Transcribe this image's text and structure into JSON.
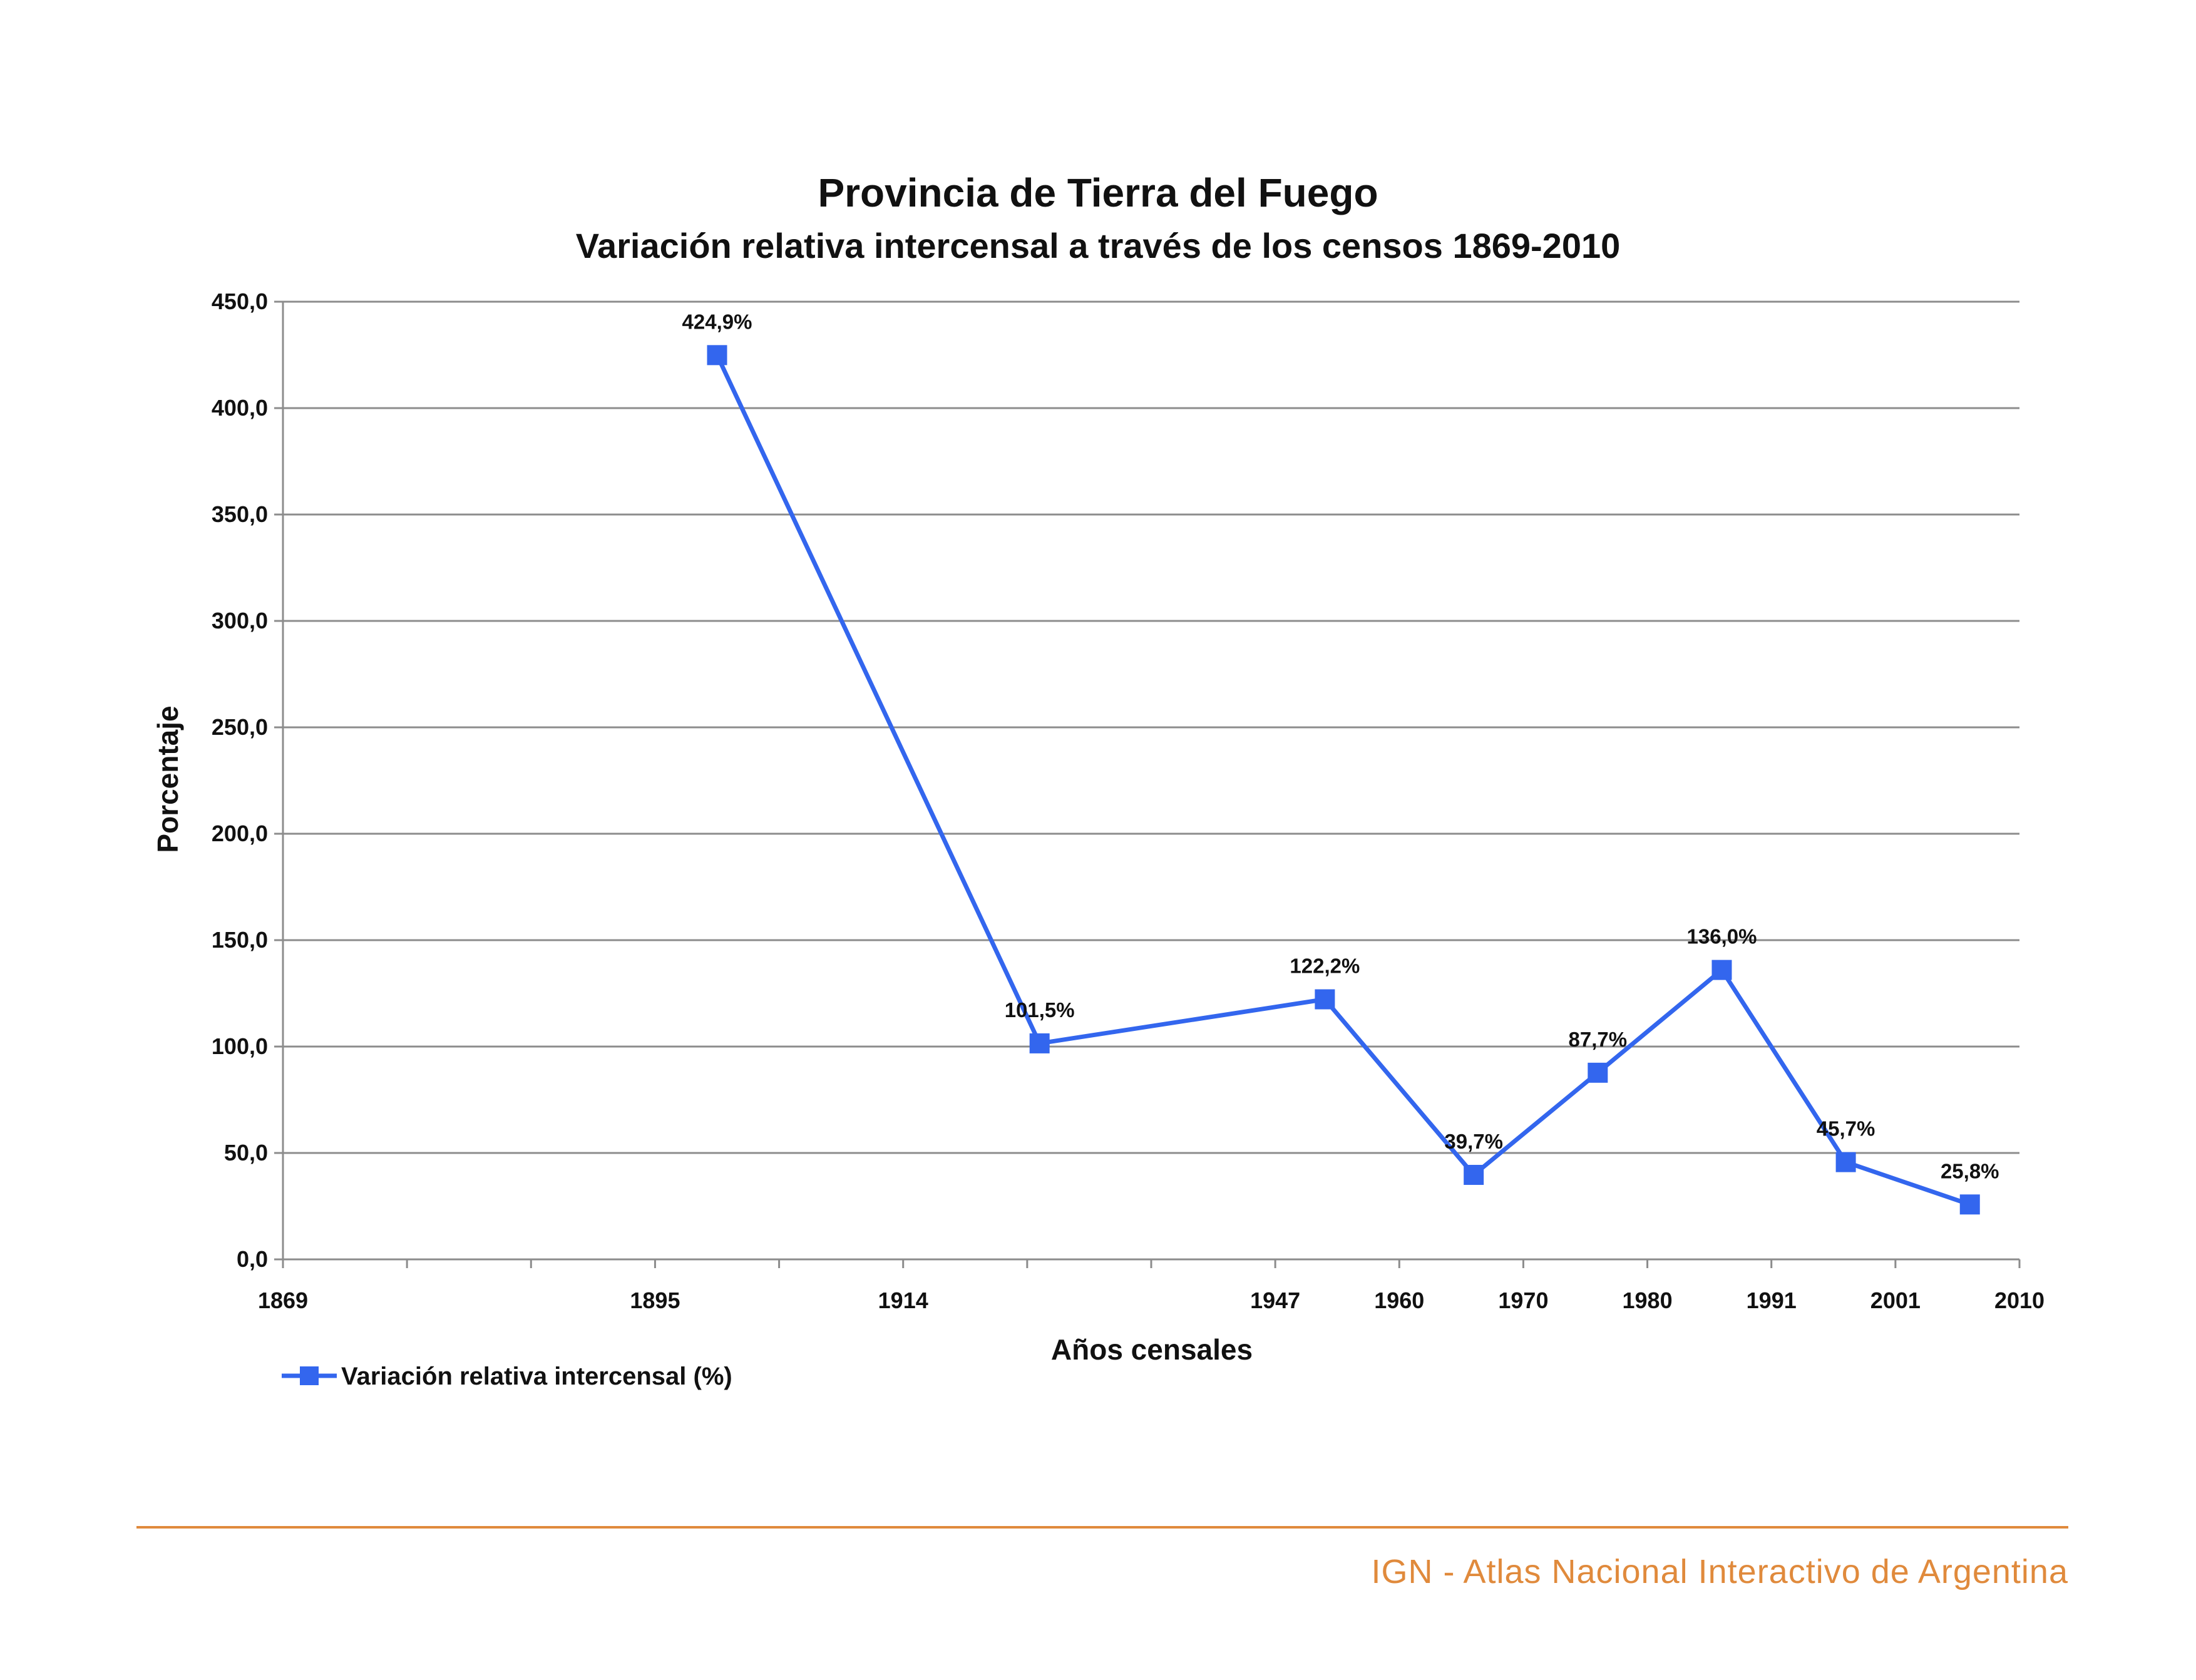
{
  "chart_data": {
    "type": "line",
    "title": "Provincia de Tierra del Fuego",
    "subtitle": "Variación relativa intercensal a través de los censos 1869-2010",
    "xlabel": "Años censales",
    "ylabel": "Porcentaje",
    "ylim": [
      0,
      450
    ],
    "yticks": [
      "0,0",
      "50,0",
      "100,0",
      "150,0",
      "200,0",
      "250,0",
      "300,0",
      "350,0",
      "400,0",
      "450,0"
    ],
    "xticks": [
      "1869",
      "",
      "",
      "1895",
      "",
      "1914",
      "",
      "",
      "1947",
      "1960",
      "1970",
      "1980",
      "1991",
      "2001",
      "2010"
    ],
    "grid": true,
    "legend_position": "bottom-left",
    "series": [
      {
        "name": "Variación relativa intercensal (%)",
        "color": "#3366ee",
        "points": [
          {
            "slot": 3.5,
            "value": 424.9,
            "label": "424,9%"
          },
          {
            "slot": 6.1,
            "value": 101.5,
            "label": "101,5%"
          },
          {
            "slot": 8.4,
            "value": 122.2,
            "label": "122,2%"
          },
          {
            "slot": 9.6,
            "value": 39.7,
            "label": "39,7%"
          },
          {
            "slot": 10.6,
            "value": 87.7,
            "label": "87,7%"
          },
          {
            "slot": 11.6,
            "value": 136.0,
            "label": "136,0%"
          },
          {
            "slot": 12.6,
            "value": 45.7,
            "label": "45,7%"
          },
          {
            "slot": 13.6,
            "value": 25.8,
            "label": "25,8%"
          }
        ]
      }
    ]
  },
  "footer": {
    "text": "IGN - Atlas Nacional Interactivo de Argentina",
    "color": "#e08a3c"
  }
}
